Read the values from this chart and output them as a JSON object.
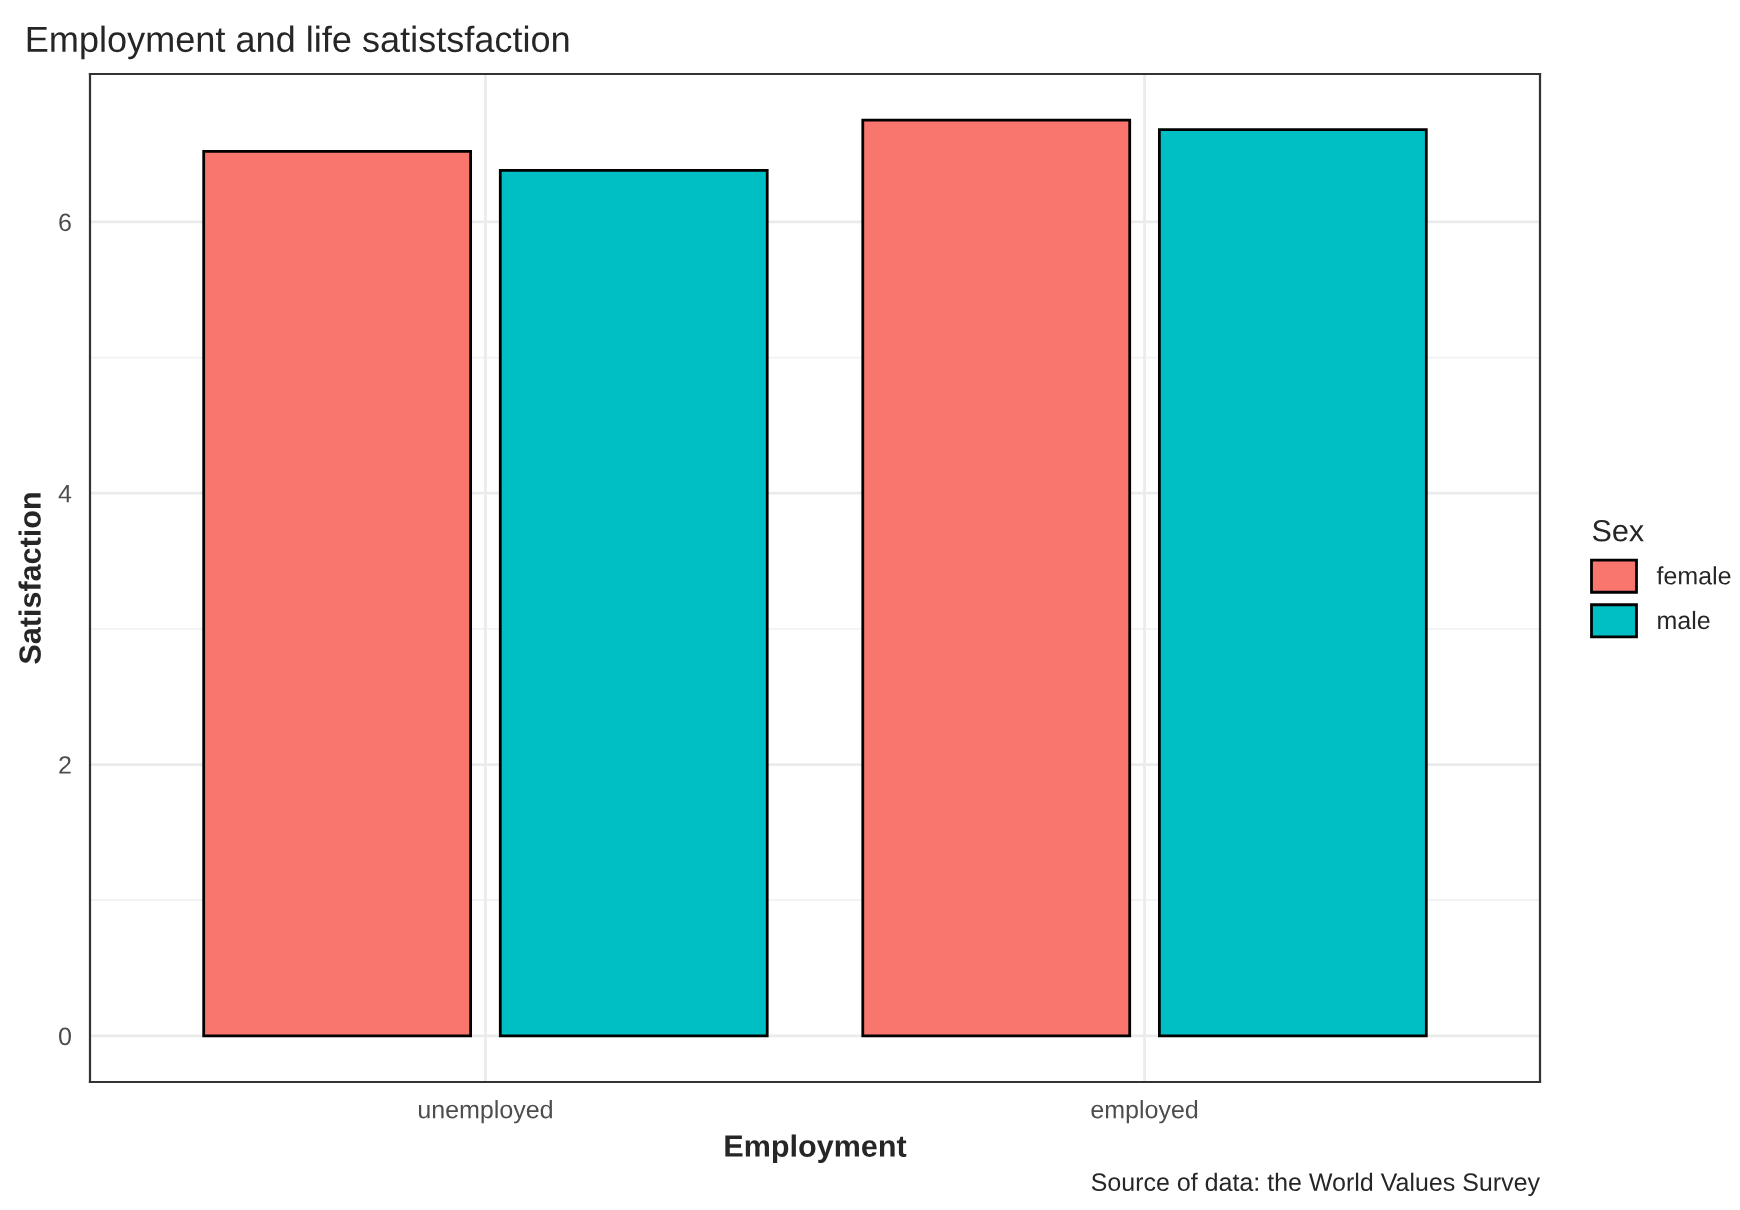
{
  "chart_data": {
    "type": "bar",
    "title": "Employment and life satistsfaction",
    "xlabel": "Employment",
    "ylabel": "Satisfaction",
    "legend_title": "Sex",
    "categories": [
      "unemployed",
      "employed"
    ],
    "series": [
      {
        "name": "female",
        "color": "#f8766d",
        "values": [
          6.52,
          6.75
        ]
      },
      {
        "name": "male",
        "color": "#00bfc4",
        "values": [
          6.38,
          6.68
        ]
      }
    ],
    "ylim": [
      -0.34,
      7.09
    ],
    "yticks": [
      0,
      2,
      4,
      6
    ],
    "grid": true,
    "legend": "right",
    "annotations": [
      "Source of data: the World Values Survey"
    ]
  }
}
